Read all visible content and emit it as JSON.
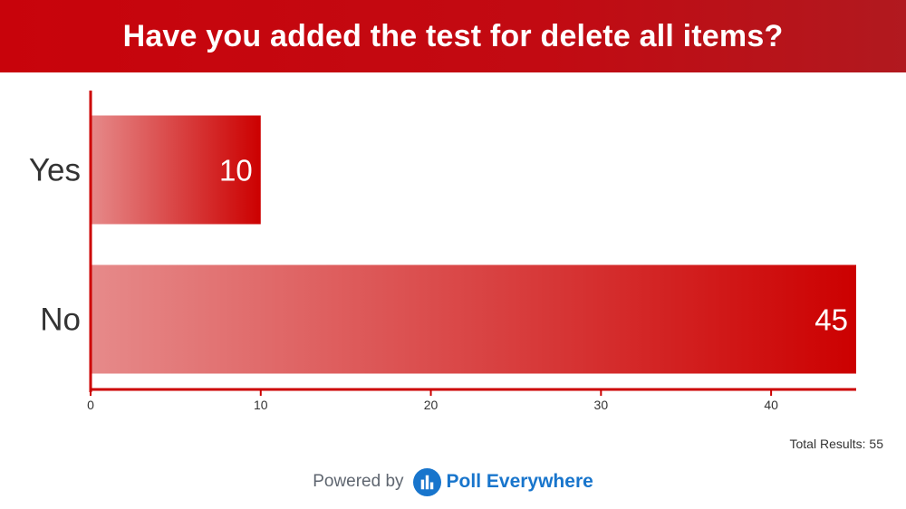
{
  "header": {
    "title": "Have you added the test for delete all items?"
  },
  "chart_data": {
    "type": "bar",
    "orientation": "horizontal",
    "categories": [
      "Yes",
      "No"
    ],
    "values": [
      10,
      45
    ],
    "xlim": [
      0,
      45
    ],
    "xticks": [
      0,
      10,
      20,
      30,
      40
    ],
    "data_labels": true,
    "grid": false,
    "bar_color": "#cc0000",
    "bar_fade_color": "#e68a8a",
    "axis_color": "#cc0000"
  },
  "footer": {
    "total_results": "Total Results: 55",
    "powered_by": "Powered by",
    "brand": "Poll Everywhere",
    "brand_color": "#1875cc",
    "brand_icon": "poll-everywhere-logo-icon"
  }
}
